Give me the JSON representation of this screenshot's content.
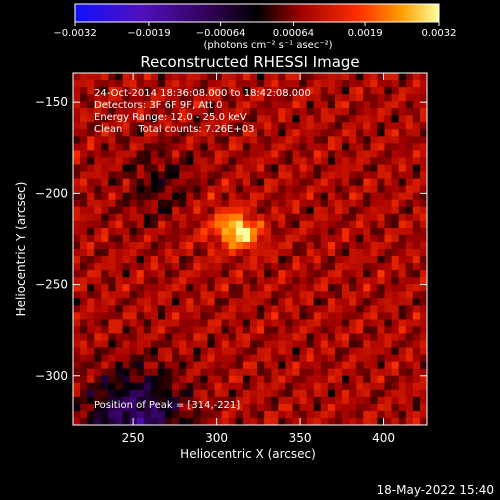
{
  "chart_data": {
    "type": "heatmap",
    "title": "Reconstructed RHESSI Image",
    "xlabel": "Heliocentric X (arcsec)",
    "ylabel": "Heliocentric Y (arcsec)",
    "xlim": [
      214,
      426
    ],
    "ylim": [
      -327,
      -134
    ],
    "x_ticks": [
      250,
      300,
      350,
      400
    ],
    "x_tick_labels": [
      "250",
      "300",
      "350",
      "400"
    ],
    "y_ticks": [
      -150,
      -200,
      -250,
      -300
    ],
    "y_tick_labels": [
      "−150",
      "−200",
      "−250",
      "−300"
    ],
    "colorbar": {
      "min": -0.0032,
      "max": 0.0032,
      "ticks": [
        -0.0032,
        -0.0019,
        -0.00064,
        0.00064,
        0.0019,
        0.0032
      ],
      "tick_labels": [
        "−0.0032",
        "−0.0019",
        "−0.00064",
        "0.00064",
        "0.0019",
        "0.0032"
      ],
      "label": "(photons cm⁻² s⁻¹ asec⁻²)"
    },
    "annotations": [
      "24-Oct-2014 18:36:08.000 to 18:42:08.000",
      "Detectors: 3F 6F 9F, Att 0",
      "Energy Range: 12.0 - 25.0 keV",
      "Clean     Total counts: 7.26E+03"
    ],
    "peak": {
      "label": "Position of Peak = [314,-221]",
      "x": 314,
      "y": -221,
      "value": 0.0032
    },
    "grid": false
  },
  "footer": {
    "timestamp": "18-May-2022 15:40"
  }
}
